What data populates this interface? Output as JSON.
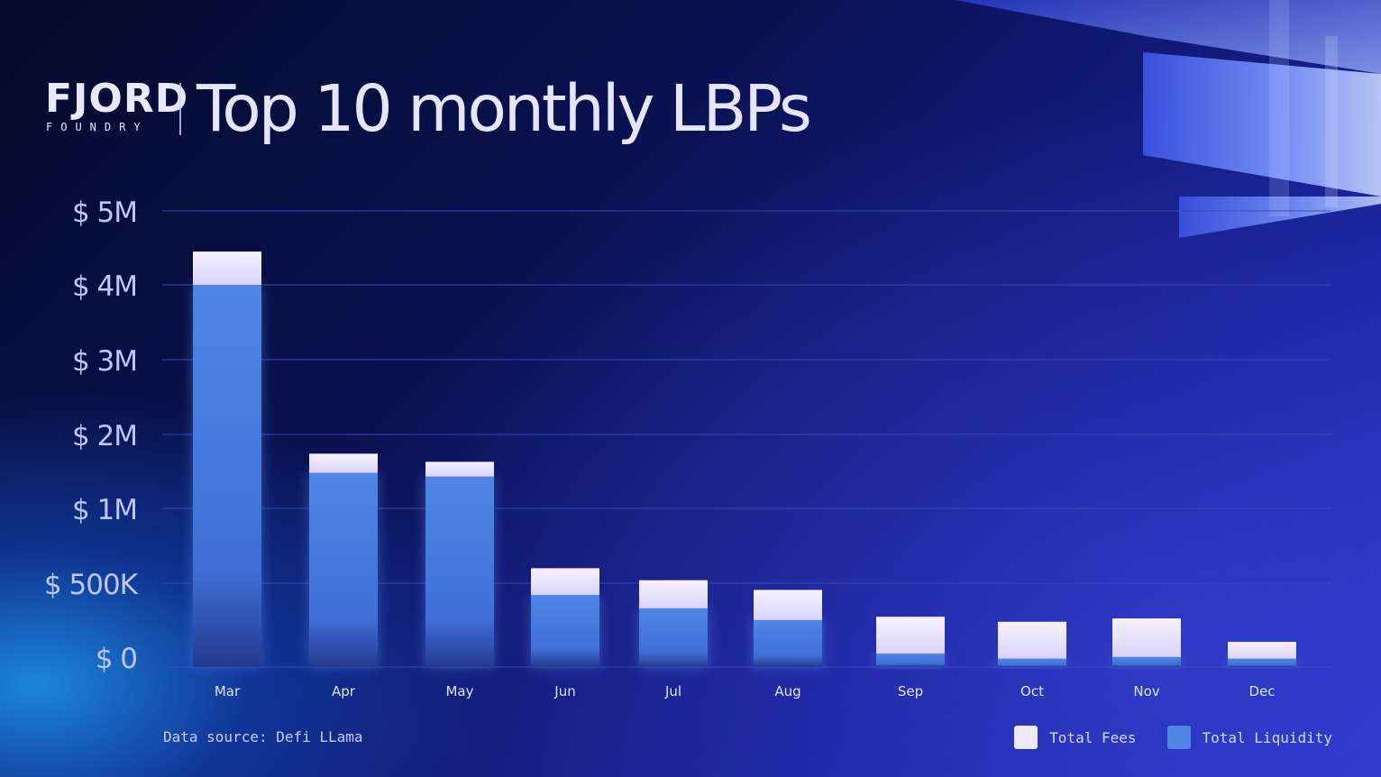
{
  "brand": {
    "name": "FJORD",
    "sub": "FOUNDRY"
  },
  "title": "Top 10 monthly LBPs",
  "source": "Data source: Defi LLama",
  "colors": {
    "fees": "#efeaff",
    "liquidity": "#4f86e6",
    "grid": "#3b4bb8",
    "axis_text": "#bcc7ff"
  },
  "chart_data": {
    "type": "bar",
    "stacked": true,
    "categories": [
      "Mar",
      "Apr",
      "May",
      "Jun",
      "Jul",
      "Aug",
      "Sep",
      "Oct",
      "Nov",
      "Dec"
    ],
    "series": [
      {
        "name": "Total Liquidity",
        "values": [
          4.0,
          1.48,
          1.43,
          0.43,
          0.35,
          0.28,
          0.08,
          0.05,
          0.06,
          0.05
        ]
      },
      {
        "name": "Total Fees",
        "values": [
          0.45,
          0.26,
          0.2,
          0.17,
          0.17,
          0.18,
          0.22,
          0.22,
          0.23,
          0.1
        ]
      }
    ],
    "yticks": [
      0,
      0.5,
      1,
      2,
      3,
      4,
      5
    ],
    "ytick_labels": [
      "$ 0",
      "$ 500K",
      "$ 1M",
      "$ 2M",
      "$ 3M",
      "$ 4M",
      "$ 5M"
    ],
    "xlabel": "",
    "ylabel": "",
    "grid": true,
    "legend": "bottom-right"
  }
}
